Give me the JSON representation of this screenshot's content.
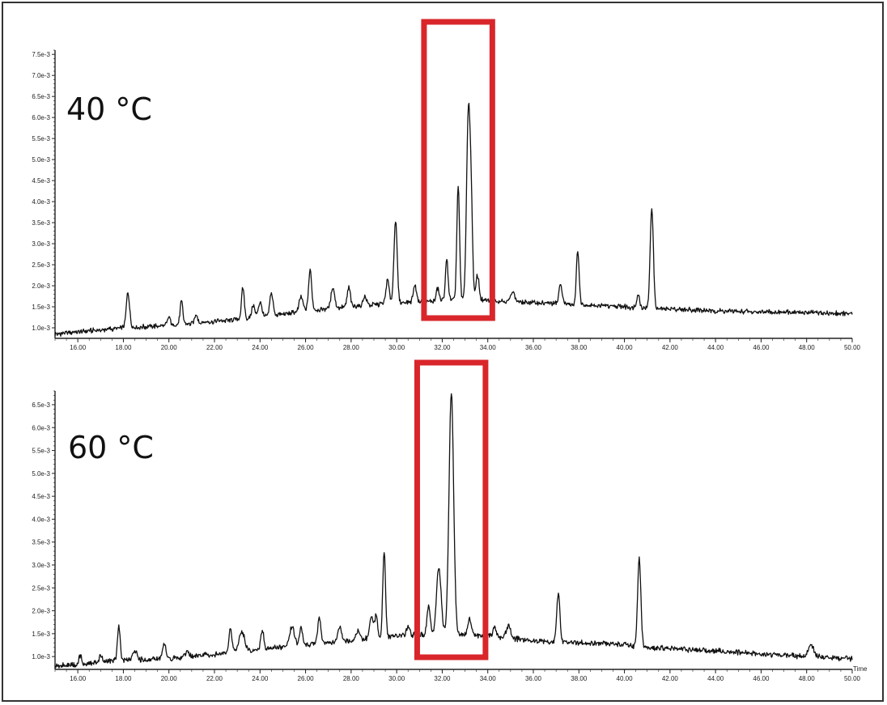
{
  "chart_data": [
    {
      "type": "line",
      "panel_label": "40 °C",
      "xlim": [
        15,
        50
      ],
      "ylim": [
        0.75,
        7.6
      ],
      "x_ticks": [
        16,
        18,
        20,
        22,
        24,
        26,
        28,
        30,
        32,
        34,
        36,
        38,
        40,
        42,
        44,
        46,
        48,
        50
      ],
      "x_tick_labels": [
        "16.00",
        "18.00",
        "20.00",
        "22.00",
        "24.00",
        "26.00",
        "28.00",
        "30.00",
        "32.00",
        "34.00",
        "36.00",
        "38.00",
        "40.00",
        "42.00",
        "44.00",
        "46.00",
        "48.00",
        "50.00"
      ],
      "y_ticks": [
        1.0,
        1.5,
        2.0,
        2.5,
        3.0,
        3.5,
        4.0,
        4.5,
        5.0,
        5.5,
        6.0,
        6.5,
        7.0,
        7.5
      ],
      "y_tick_labels": [
        "1.0e-3",
        "1.5e-3",
        "2.0e-3",
        "2.5e-3",
        "3.0e-3",
        "3.5e-3",
        "4.0e-3",
        "4.5e-3",
        "5.0e-3",
        "5.5e-3",
        "6.0e-3",
        "6.5e-3",
        "7.0e-3",
        "7.5e-3"
      ],
      "highlight_x": [
        31.2,
        34.2
      ],
      "baseline": [
        [
          15,
          0.85
        ],
        [
          16,
          0.9
        ],
        [
          17,
          0.95
        ],
        [
          18,
          1.0
        ],
        [
          20,
          1.05
        ],
        [
          22,
          1.15
        ],
        [
          24,
          1.25
        ],
        [
          26,
          1.4
        ],
        [
          28,
          1.5
        ],
        [
          30,
          1.6
        ],
        [
          32,
          1.65
        ],
        [
          34,
          1.65
        ],
        [
          36,
          1.6
        ],
        [
          38,
          1.55
        ],
        [
          40,
          1.5
        ],
        [
          41.5,
          1.45
        ],
        [
          42,
          1.45
        ],
        [
          44,
          1.4
        ],
        [
          46,
          1.38
        ],
        [
          48,
          1.36
        ],
        [
          50,
          1.34
        ]
      ],
      "peaks": [
        {
          "x": 18.2,
          "h": 0.85,
          "w": 0.07
        },
        {
          "x": 20.0,
          "h": 0.2,
          "w": 0.07
        },
        {
          "x": 20.55,
          "h": 0.55,
          "w": 0.06
        },
        {
          "x": 21.2,
          "h": 0.2,
          "w": 0.07
        },
        {
          "x": 23.25,
          "h": 0.75,
          "w": 0.06
        },
        {
          "x": 23.7,
          "h": 0.3,
          "w": 0.07
        },
        {
          "x": 24.0,
          "h": 0.35,
          "w": 0.08
        },
        {
          "x": 24.5,
          "h": 0.55,
          "w": 0.07
        },
        {
          "x": 25.8,
          "h": 0.35,
          "w": 0.08
        },
        {
          "x": 26.2,
          "h": 0.95,
          "w": 0.07
        },
        {
          "x": 27.2,
          "h": 0.5,
          "w": 0.08
        },
        {
          "x": 27.9,
          "h": 0.45,
          "w": 0.07
        },
        {
          "x": 28.6,
          "h": 0.2,
          "w": 0.08
        },
        {
          "x": 29.6,
          "h": 0.55,
          "w": 0.07
        },
        {
          "x": 29.95,
          "h": 1.95,
          "w": 0.07
        },
        {
          "x": 30.8,
          "h": 0.4,
          "w": 0.07
        },
        {
          "x": 31.8,
          "h": 0.3,
          "w": 0.06
        },
        {
          "x": 32.2,
          "h": 0.95,
          "w": 0.06
        },
        {
          "x": 32.7,
          "h": 2.7,
          "w": 0.06
        },
        {
          "x": 33.15,
          "h": 4.5,
          "w": 0.08
        },
        {
          "x": 33.28,
          "h": 1.7,
          "w": 0.06
        },
        {
          "x": 33.55,
          "h": 0.6,
          "w": 0.07
        },
        {
          "x": 35.1,
          "h": 0.25,
          "w": 0.08
        },
        {
          "x": 37.2,
          "h": 0.45,
          "w": 0.07
        },
        {
          "x": 37.95,
          "h": 1.3,
          "w": 0.06
        },
        {
          "x": 40.6,
          "h": 0.3,
          "w": 0.07
        },
        {
          "x": 41.2,
          "h": 2.4,
          "w": 0.07
        }
      ]
    },
    {
      "type": "line",
      "panel_label": "60 °C",
      "xlim": [
        15,
        50
      ],
      "ylim": [
        0.72,
        6.8
      ],
      "x_ticks": [
        16,
        18,
        20,
        22,
        24,
        26,
        28,
        30,
        32,
        34,
        36,
        38,
        40,
        42,
        44,
        46,
        48,
        50
      ],
      "x_tick_labels": [
        "16.00",
        "18.00",
        "20.00",
        "22.00",
        "24.00",
        "26.00",
        "28.00",
        "30.00",
        "32.00",
        "34.00",
        "36.00",
        "38.00",
        "40.00",
        "42.00",
        "44.00",
        "46.00",
        "48.00",
        "50.00"
      ],
      "y_ticks": [
        1.0,
        1.5,
        2.0,
        2.5,
        3.0,
        3.5,
        4.0,
        4.5,
        5.0,
        5.5,
        6.0,
        6.5
      ],
      "y_tick_labels": [
        "1.0e-3",
        "1.5e-3",
        "2.0e-3",
        "2.5e-3",
        "3.0e-3",
        "3.5e-3",
        "4.0e-3",
        "4.5e-3",
        "5.0e-3",
        "5.5e-3",
        "6.0e-3",
        "6.5e-3"
      ],
      "x_axis_name": "Time",
      "highlight_x": [
        30.9,
        33.9
      ],
      "baseline": [
        [
          15,
          0.8
        ],
        [
          16,
          0.82
        ],
        [
          17,
          0.88
        ],
        [
          18,
          0.92
        ],
        [
          20,
          0.95
        ],
        [
          22,
          1.05
        ],
        [
          24,
          1.15
        ],
        [
          26,
          1.25
        ],
        [
          28,
          1.35
        ],
        [
          30,
          1.45
        ],
        [
          32,
          1.5
        ],
        [
          34,
          1.45
        ],
        [
          36,
          1.35
        ],
        [
          38,
          1.3
        ],
        [
          40,
          1.27
        ],
        [
          40.8,
          1.2
        ],
        [
          42,
          1.18
        ],
        [
          44,
          1.12
        ],
        [
          46,
          1.06
        ],
        [
          48,
          1.0
        ],
        [
          50,
          0.95
        ]
      ],
      "peaks": [
        {
          "x": 16.1,
          "h": 0.2,
          "w": 0.06
        },
        {
          "x": 17.0,
          "h": 0.15,
          "w": 0.06
        },
        {
          "x": 17.8,
          "h": 0.75,
          "w": 0.06
        },
        {
          "x": 18.5,
          "h": 0.2,
          "w": 0.08
        },
        {
          "x": 19.8,
          "h": 0.35,
          "w": 0.07
        },
        {
          "x": 20.8,
          "h": 0.15,
          "w": 0.07
        },
        {
          "x": 22.7,
          "h": 0.55,
          "w": 0.06
        },
        {
          "x": 23.2,
          "h": 0.45,
          "w": 0.12
        },
        {
          "x": 24.1,
          "h": 0.4,
          "w": 0.07
        },
        {
          "x": 25.4,
          "h": 0.45,
          "w": 0.1
        },
        {
          "x": 25.8,
          "h": 0.4,
          "w": 0.07
        },
        {
          "x": 26.6,
          "h": 0.55,
          "w": 0.07
        },
        {
          "x": 27.5,
          "h": 0.35,
          "w": 0.07
        },
        {
          "x": 28.3,
          "h": 0.2,
          "w": 0.08
        },
        {
          "x": 28.9,
          "h": 0.45,
          "w": 0.08
        },
        {
          "x": 29.1,
          "h": 0.5,
          "w": 0.06
        },
        {
          "x": 29.45,
          "h": 1.9,
          "w": 0.06
        },
        {
          "x": 30.5,
          "h": 0.2,
          "w": 0.07
        },
        {
          "x": 31.4,
          "h": 0.6,
          "w": 0.07
        },
        {
          "x": 31.85,
          "h": 1.45,
          "w": 0.1
        },
        {
          "x": 32.4,
          "h": 5.3,
          "w": 0.1
        },
        {
          "x": 33.2,
          "h": 0.35,
          "w": 0.08
        },
        {
          "x": 34.3,
          "h": 0.2,
          "w": 0.08
        },
        {
          "x": 34.9,
          "h": 0.25,
          "w": 0.1
        },
        {
          "x": 37.1,
          "h": 1.05,
          "w": 0.07
        },
        {
          "x": 40.65,
          "h": 1.95,
          "w": 0.07
        },
        {
          "x": 48.2,
          "h": 0.25,
          "w": 0.12
        }
      ]
    }
  ],
  "colors": {
    "trace": "#111111",
    "highlight": "#d9262b",
    "axis": "#222222",
    "frame": "#333333"
  }
}
